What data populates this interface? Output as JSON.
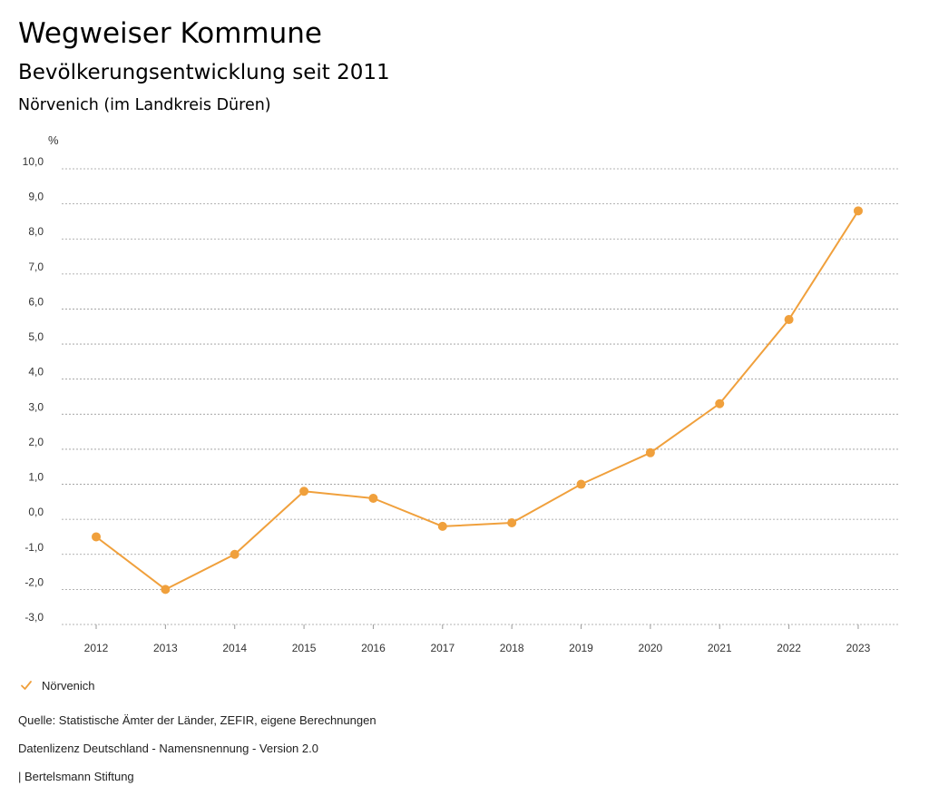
{
  "header": {
    "title": "Wegweiser Kommune",
    "subtitle": "Bevölkerungsentwicklung seit 2011",
    "region": "Nörvenich (im Landkreis Düren)"
  },
  "chart_data": {
    "type": "line",
    "ylabel": "%",
    "xlabel": "",
    "ylim": [
      -3.0,
      10.0
    ],
    "y_ticks": [
      -3.0,
      -2.0,
      -1.0,
      0.0,
      1.0,
      2.0,
      3.0,
      4.0,
      5.0,
      6.0,
      7.0,
      8.0,
      9.0,
      10.0
    ],
    "y_tick_labels": [
      "-3,0",
      "-2,0",
      "-1,0",
      "0,0",
      "1,0",
      "2,0",
      "3,0",
      "4,0",
      "5,0",
      "6,0",
      "7,0",
      "8,0",
      "9,0",
      "10,0"
    ],
    "categories": [
      "2012",
      "2013",
      "2014",
      "2015",
      "2016",
      "2017",
      "2018",
      "2019",
      "2020",
      "2021",
      "2022",
      "2023"
    ],
    "series": [
      {
        "name": "Nörvenich",
        "color": "#f0a03c",
        "values": [
          -0.5,
          -2.0,
          -1.0,
          0.8,
          0.6,
          -0.2,
          -0.1,
          1.0,
          1.9,
          3.3,
          5.7,
          8.8
        ]
      }
    ],
    "grid": true,
    "legend_position": "bottom-left"
  },
  "legend": {
    "icon": "check-icon",
    "label": "Nörvenich"
  },
  "footer": {
    "source": "Quelle: Statistische Ämter der Länder, ZEFIR, eigene Berechnungen",
    "license": "Datenlizenz Deutschland - Namensnennung - Version 2.0",
    "publisher": "| Bertelsmann Stiftung"
  }
}
